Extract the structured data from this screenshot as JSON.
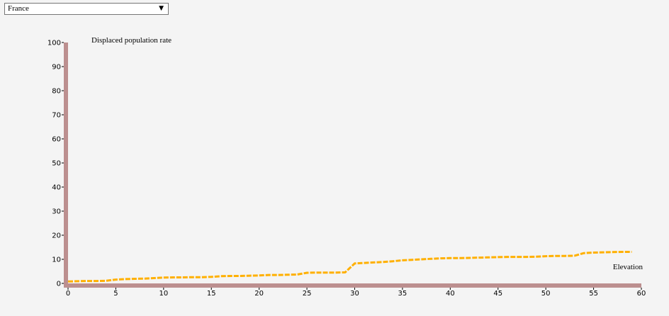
{
  "selector": {
    "selected": "France",
    "arrow_icon": "▼"
  },
  "colors": {
    "line": "#ffb000",
    "axis": "#bc8f8f"
  },
  "chart_data": {
    "type": "line",
    "title": "",
    "ylabel": "Displaced population rate",
    "xlabel": "Elevation",
    "xlim": [
      0,
      60
    ],
    "ylim": [
      0,
      100
    ],
    "x_ticks": [
      0,
      5,
      10,
      15,
      20,
      25,
      30,
      35,
      40,
      45,
      50,
      55,
      60
    ],
    "y_ticks": [
      0,
      10,
      20,
      30,
      40,
      50,
      60,
      70,
      80,
      90,
      100
    ],
    "grid": false,
    "line_style": "dashed",
    "series": [
      {
        "x": [
          0,
          1,
          2,
          3,
          4,
          5,
          6,
          7,
          8,
          9,
          10,
          11,
          12,
          13,
          14,
          15,
          16,
          17,
          18,
          19,
          20,
          21,
          22,
          23,
          24,
          25,
          26,
          27,
          28,
          29,
          30,
          31,
          32,
          33,
          34,
          35,
          36,
          37,
          38,
          39,
          40,
          41,
          42,
          43,
          44,
          45,
          46,
          47,
          48,
          49,
          50,
          51,
          52,
          53,
          54,
          55,
          56,
          57,
          58,
          59
        ],
        "y": [
          0.8,
          0.9,
          1.0,
          1.0,
          1.1,
          1.6,
          1.8,
          1.9,
          2.0,
          2.2,
          2.4,
          2.5,
          2.5,
          2.6,
          2.6,
          2.7,
          3.0,
          3.1,
          3.1,
          3.2,
          3.3,
          3.5,
          3.5,
          3.6,
          3.7,
          4.4,
          4.5,
          4.5,
          4.5,
          4.6,
          8.3,
          8.5,
          8.7,
          8.9,
          9.2,
          9.6,
          9.8,
          10.0,
          10.2,
          10.4,
          10.5,
          10.5,
          10.6,
          10.7,
          10.8,
          10.9,
          11.0,
          11.0,
          11.0,
          11.1,
          11.3,
          11.4,
          11.4,
          11.5,
          12.6,
          12.8,
          12.9,
          13.0,
          13.1,
          13.1
        ]
      }
    ]
  }
}
